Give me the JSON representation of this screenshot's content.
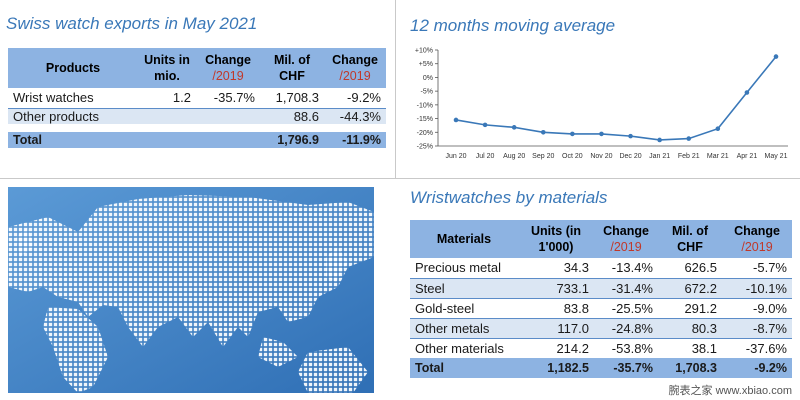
{
  "exports_table": {
    "title": "Swiss watch exports in May 2021",
    "headers": [
      {
        "main": "Products",
        "sub": ""
      },
      {
        "main": "Units in mio.",
        "sub": ""
      },
      {
        "main": "Change",
        "sub": "/2019"
      },
      {
        "main": "Mil. of CHF",
        "sub": ""
      },
      {
        "main": "Change",
        "sub": "/2019"
      }
    ],
    "rows": [
      [
        "Wrist watches",
        "1.2",
        "-35.7%",
        "1,708.3",
        "-9.2%"
      ],
      [
        "Other products",
        "",
        "",
        "88.6",
        "-44.3%"
      ]
    ],
    "total": [
      "Total",
      "",
      "",
      "1,796.9",
      "-11.9%"
    ]
  },
  "materials_table": {
    "title": "Wristwatches by materials",
    "headers": [
      {
        "main": "Materials",
        "sub": ""
      },
      {
        "main": "Units (in 1'000)",
        "sub": ""
      },
      {
        "main": "Change",
        "sub": "/2019"
      },
      {
        "main": "Mil. of CHF",
        "sub": ""
      },
      {
        "main": "Change",
        "sub": "/2019"
      }
    ],
    "rows": [
      [
        "Precious metal",
        "34.3",
        "-13.4%",
        "626.5",
        "-5.7%"
      ],
      [
        "Steel",
        "733.1",
        "-31.4%",
        "672.2",
        "-10.1%"
      ],
      [
        "Gold-steel",
        "83.8",
        "-25.5%",
        "291.2",
        "-9.0%"
      ],
      [
        "Other metals",
        "117.0",
        "-24.8%",
        "80.3",
        "-8.7%"
      ],
      [
        "Other materials",
        "214.2",
        "-53.8%",
        "38.1",
        "-37.6%"
      ]
    ],
    "total": [
      "Total",
      "1,182.5",
      "-35.7%",
      "1,708.3",
      "-9.2%"
    ]
  },
  "chart_data": {
    "type": "line",
    "title": "12 months moving average",
    "xlabel": "",
    "ylabel": "",
    "categories": [
      "Jun 20",
      "Jul 20",
      "Aug 20",
      "Sep 20",
      "Oct 20",
      "Nov 20",
      "Dec 20",
      "Jan 21",
      "Feb 21",
      "Mar 21",
      "Apr 21",
      "May 21"
    ],
    "series": [
      {
        "values": [
          -15.5,
          -17.3,
          -18.2,
          -20.0,
          -20.6,
          -20.6,
          -21.4,
          -22.8,
          -22.3,
          -18.7,
          -5.5,
          7.6
        ],
        "color": "#3a78b8"
      }
    ],
    "ylim": [
      -25,
      10
    ],
    "yticks": [
      -25,
      -20,
      -15,
      -10,
      -5,
      0,
      5,
      10
    ],
    "yticklabels": [
      "-25%",
      "-20%",
      "-15%",
      "-10%",
      "-5%",
      "0%",
      "+5%",
      "+10%"
    ],
    "grid": false,
    "legend": "none"
  },
  "watermark": "腕表之家 www.xbiao.com"
}
